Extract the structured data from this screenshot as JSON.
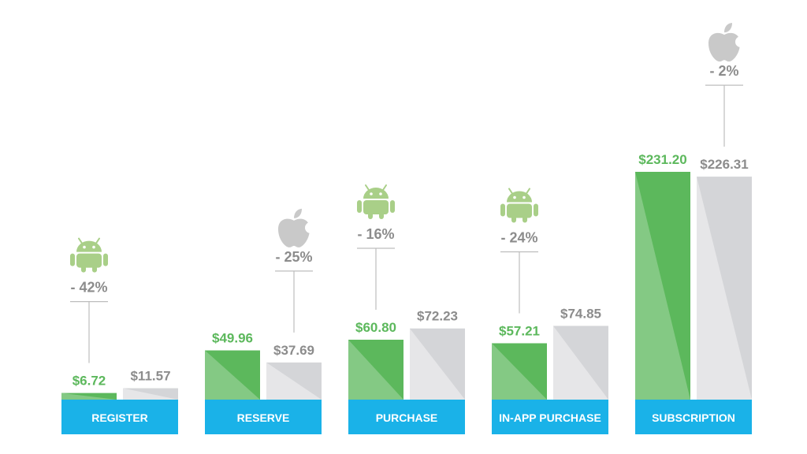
{
  "colors": {
    "android": "#5cb85c",
    "android_light": "#84c984",
    "ios": "#d4d5d8",
    "ios_light": "#e6e6e8",
    "category_bar": "#1ab2e8",
    "android_label": "#5cb85c",
    "ios_label": "#8c8c8c",
    "icon_android": "#a9cf88",
    "icon_apple": "#c9c9c9",
    "connector": "#bdbdbd"
  },
  "chart_data": {
    "type": "bar",
    "categories": [
      "REGISTER",
      "RESERVE",
      "PURCHASE",
      "IN-APP PURCHASE",
      "SUBSCRIPTION"
    ],
    "series": [
      {
        "values": [
          6.72,
          49.96,
          60.8,
          57.21,
          231.2
        ]
      },
      {
        "values": [
          11.57,
          37.69,
          72.23,
          74.85,
          226.31
        ]
      }
    ],
    "value_labels": {
      "android": [
        "$6.72",
        "$49.96",
        "$60.80",
        "$57.21",
        "$231.20"
      ],
      "ios": [
        "$11.57",
        "$37.69",
        "$72.23",
        "$74.85",
        "$226.31"
      ]
    },
    "differences": [
      {
        "label": "- 42%",
        "icon": "android-icon"
      },
      {
        "label": "- 25%",
        "icon": "apple-icon"
      },
      {
        "label": "- 16%",
        "icon": "android-icon"
      },
      {
        "label": "- 24%",
        "icon": "android-icon"
      },
      {
        "label": "- 2%",
        "icon": "apple-icon"
      }
    ],
    "ylim": [
      0,
      240
    ],
    "grid": false,
    "legend": "none"
  }
}
